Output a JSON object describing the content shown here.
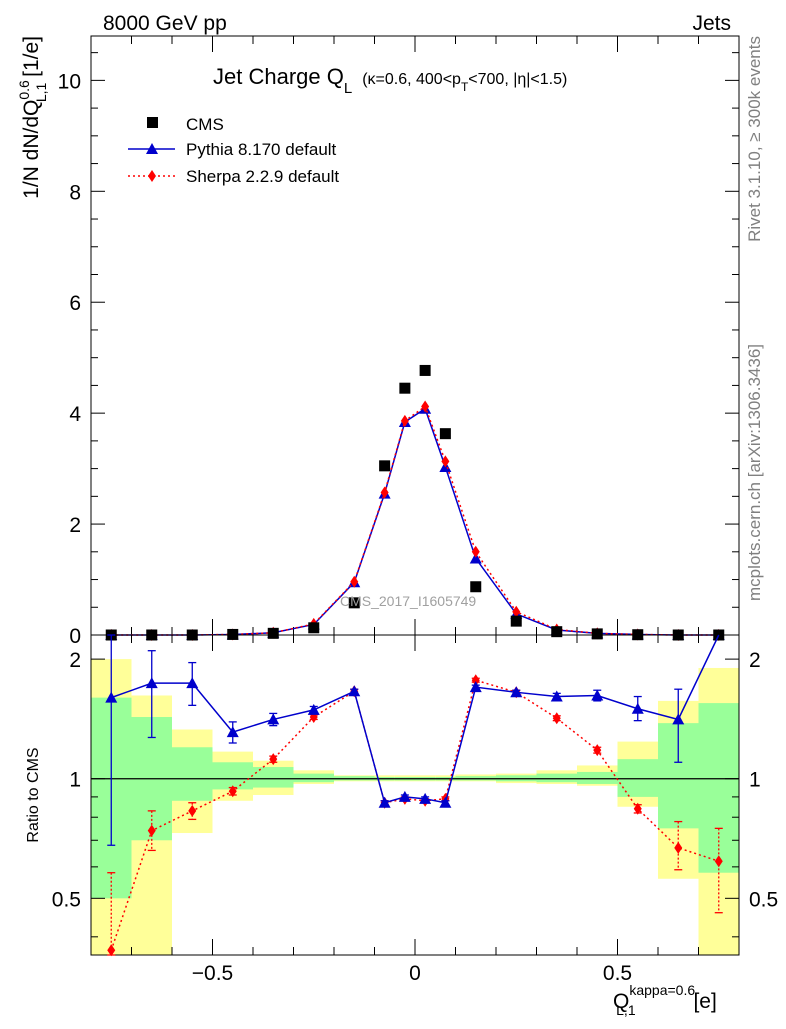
{
  "header": {
    "energy_label": "8000 GeV pp",
    "category_label": "Jets"
  },
  "side": {
    "rivet_label": "Rivet 3.1.10, ≥ 300k events",
    "mcplots_label": "mcplots.cern.ch [arXiv:1306.3436]"
  },
  "chart_data": [
    {
      "type": "scatter",
      "title_main": "Jet Charge Q",
      "title_sub": "L",
      "title_cuts": "(κ=0.6, 400<p",
      "title_cuts_sub": "T",
      "title_cuts_end": "<700, |η|<1.5)",
      "ylabel_parts": {
        "pre": "1/N dN/dQ",
        "sup": "0.6",
        "sub": "L,1",
        "post": " [1/e]"
      },
      "watermark": "CMS_2017_I1605749",
      "ylim": [
        0,
        10.8
      ],
      "xlim": [
        -0.8,
        0.8
      ],
      "y_ticks": [
        "0",
        "2",
        "4",
        "6",
        "8",
        "10"
      ],
      "x": [
        -0.75,
        -0.65,
        -0.55,
        -0.45,
        -0.35,
        -0.25,
        -0.15,
        -0.075,
        -0.025,
        0.025,
        0.075,
        0.15,
        0.25,
        0.35,
        0.45,
        0.55,
        0.65,
        0.75
      ],
      "series": [
        {
          "name": "CMS",
          "color": "#000000",
          "marker": "square",
          "values": [
            0.0,
            0.0,
            0.0,
            0.01,
            0.03,
            0.13,
            0.58,
            3.05,
            4.45,
            4.77,
            3.63,
            0.87,
            0.25,
            0.06,
            0.02,
            0.005,
            0.0,
            0.0
          ]
        },
        {
          "name": "Pythia 8.170 default",
          "color": "#0000cc",
          "marker": "triangle",
          "line": "solid",
          "values": [
            0.0,
            0.0,
            0.0,
            0.01,
            0.04,
            0.19,
            0.95,
            2.55,
            3.84,
            4.08,
            3.03,
            1.38,
            0.38,
            0.09,
            0.03,
            0.01,
            0.0,
            0.0
          ]
        },
        {
          "name": "Sherpa 2.2.9 default",
          "color": "#ff0000",
          "marker": "diamond",
          "line": "dotted",
          "values": [
            0.0,
            0.0,
            0.0,
            0.01,
            0.04,
            0.2,
            0.96,
            2.57,
            3.86,
            4.12,
            3.13,
            1.5,
            0.42,
            0.1,
            0.03,
            0.01,
            0.0,
            0.0
          ]
        }
      ],
      "legend_placement": "top-left"
    },
    {
      "type": "scatter",
      "ylabel": "Ratio to CMS",
      "xlabel_parts": {
        "pre": "Q",
        "sup": "kappa=0.6",
        "sub": "L,1",
        "post": " [e]"
      },
      "y_scale": "log",
      "ylim": [
        0.36,
        2.3
      ],
      "xlim": [
        -0.8,
        0.8
      ],
      "y_ticks": [
        "0.5",
        "1",
        "2"
      ],
      "x_ticks": [
        "−0.5",
        "0",
        "0.5"
      ],
      "bins": [
        [
          -0.8,
          -0.7
        ],
        [
          -0.7,
          -0.6
        ],
        [
          -0.6,
          -0.5
        ],
        [
          -0.5,
          -0.4
        ],
        [
          -0.4,
          -0.3
        ],
        [
          -0.3,
          -0.2
        ],
        [
          -0.2,
          -0.1
        ],
        [
          -0.1,
          -0.05
        ],
        [
          -0.05,
          0.0
        ],
        [
          0.0,
          0.05
        ],
        [
          0.05,
          0.1
        ],
        [
          0.1,
          0.2
        ],
        [
          0.2,
          0.3
        ],
        [
          0.3,
          0.4
        ],
        [
          0.4,
          0.5
        ],
        [
          0.5,
          0.6
        ],
        [
          0.6,
          0.7
        ],
        [
          0.7,
          0.8
        ]
      ],
      "band_green": [
        [
          0.5,
          1.6
        ],
        [
          0.7,
          1.43
        ],
        [
          0.88,
          1.2
        ],
        [
          0.94,
          1.1
        ],
        [
          0.95,
          1.07
        ],
        [
          0.98,
          1.03
        ],
        [
          0.99,
          1.015
        ],
        [
          0.99,
          1.01
        ],
        [
          0.99,
          1.01
        ],
        [
          0.99,
          1.01
        ],
        [
          0.99,
          1.01
        ],
        [
          0.99,
          1.015
        ],
        [
          0.985,
          1.02
        ],
        [
          0.98,
          1.03
        ],
        [
          0.97,
          1.04
        ],
        [
          0.9,
          1.12
        ],
        [
          0.75,
          1.38
        ],
        [
          0.58,
          1.55
        ]
      ],
      "band_yellow": [
        [
          0.36,
          2.0
        ],
        [
          0.36,
          1.62
        ],
        [
          0.73,
          1.33
        ],
        [
          0.88,
          1.17
        ],
        [
          0.91,
          1.11
        ],
        [
          0.97,
          1.05
        ],
        [
          0.985,
          1.02
        ],
        [
          0.985,
          1.02
        ],
        [
          0.985,
          1.02
        ],
        [
          0.985,
          1.02
        ],
        [
          0.985,
          1.02
        ],
        [
          0.985,
          1.025
        ],
        [
          0.975,
          1.03
        ],
        [
          0.97,
          1.05
        ],
        [
          0.96,
          1.08
        ],
        [
          0.85,
          1.24
        ],
        [
          0.56,
          1.57
        ],
        [
          0.36,
          1.9
        ]
      ],
      "series": [
        {
          "name": "Pythia 8.170 default",
          "color": "#0000cc",
          "values": [
            1.6,
            1.74,
            1.74,
            1.31,
            1.41,
            1.49,
            1.66,
            0.87,
            0.9,
            0.89,
            0.87,
            1.7,
            1.65,
            1.61,
            1.62,
            1.5,
            1.41,
            2.4
          ],
          "err_low": [
            0.68,
            1.27,
            1.53,
            1.23,
            1.36,
            1.46,
            1.64,
            0.86,
            0.89,
            0.88,
            0.86,
            1.68,
            1.63,
            1.58,
            1.57,
            1.4,
            1.1,
            2.4
          ],
          "err_high": [
            2.3,
            2.1,
            1.96,
            1.39,
            1.46,
            1.52,
            1.68,
            0.88,
            0.91,
            0.9,
            0.88,
            1.72,
            1.67,
            1.64,
            1.67,
            1.61,
            1.68,
            2.4
          ]
        },
        {
          "name": "Sherpa 2.2.9 default",
          "color": "#ff0000",
          "values": [
            0.37,
            0.74,
            0.83,
            0.93,
            1.12,
            1.43,
            1.66,
            0.87,
            0.89,
            0.88,
            0.89,
            1.77,
            1.65,
            1.42,
            1.18,
            0.84,
            0.67,
            0.62
          ],
          "err_low": [
            0.33,
            0.66,
            0.79,
            0.91,
            1.1,
            1.41,
            1.64,
            0.86,
            0.88,
            0.87,
            0.88,
            1.75,
            1.63,
            1.4,
            1.16,
            0.82,
            0.59,
            0.46
          ],
          "err_high": [
            0.58,
            0.83,
            0.87,
            0.95,
            1.14,
            1.45,
            1.68,
            0.88,
            0.9,
            0.89,
            0.9,
            1.79,
            1.67,
            1.44,
            1.2,
            0.86,
            0.78,
            0.75
          ]
        }
      ]
    }
  ]
}
